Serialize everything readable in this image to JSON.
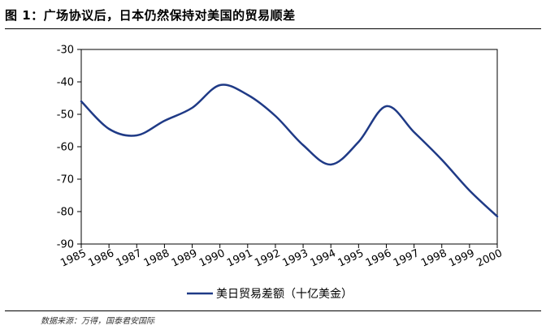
{
  "title": "图 1：广场协议后，日本仍然保持对美国的贸易顺差",
  "source": "数据来源：万得，国泰君安国际",
  "chart_data": {
    "type": "line",
    "title": "",
    "xlabel": "",
    "ylabel": "",
    "x": [
      "1985",
      "1986",
      "1987",
      "1988",
      "1989",
      "1990",
      "1991",
      "1992",
      "1993",
      "1994",
      "1995",
      "1996",
      "1997",
      "1998",
      "1999",
      "2000"
    ],
    "ylim": [
      -90,
      -30
    ],
    "yticks": [
      -30,
      -40,
      -50,
      -60,
      -70,
      -80,
      -90
    ],
    "grid": false,
    "legend": "bottom",
    "series": [
      {
        "name": "美日贸易差额（十亿美金）",
        "color": "#1f3a86",
        "values": [
          -46,
          -54.5,
          -56.5,
          -52,
          -48,
          -41,
          -44,
          -50.5,
          -59.5,
          -65.5,
          -58.5,
          -47.5,
          -55.5,
          -64,
          -73.5,
          -81.5
        ]
      }
    ]
  }
}
